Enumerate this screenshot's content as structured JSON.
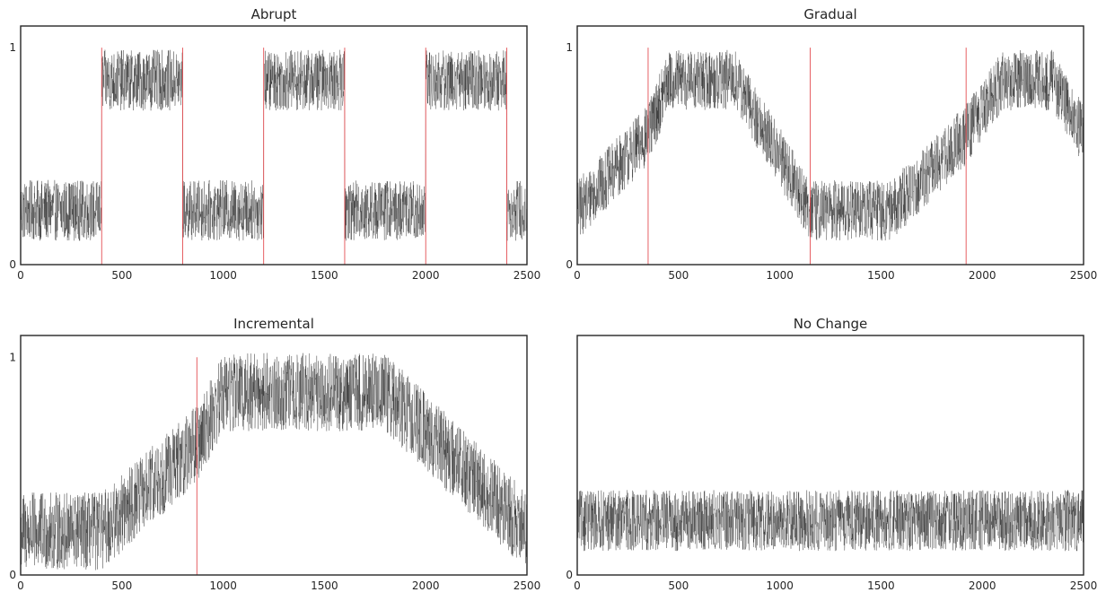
{
  "chart_data": [
    {
      "type": "line",
      "title": "Abrupt",
      "xlabel": "",
      "ylabel": "",
      "xlim": [
        0,
        2500
      ],
      "ylim": [
        0,
        1.1
      ],
      "xticks": [
        0,
        500,
        1000,
        1500,
        2000,
        2500
      ],
      "yticks": [
        0,
        1
      ],
      "drift_points": [
        400,
        800,
        1200,
        1600,
        2000,
        2400
      ],
      "trend": {
        "x": [
          0,
          399,
          400,
          799,
          800,
          1199,
          1200,
          1599,
          1600,
          1999,
          2000,
          2399,
          2400,
          2500
        ],
        "y": [
          0.25,
          0.25,
          0.85,
          0.85,
          0.25,
          0.25,
          0.85,
          0.85,
          0.25,
          0.25,
          0.85,
          0.85,
          0.25,
          0.25
        ]
      },
      "noise_amplitude": 0.14,
      "line_color": "#000000",
      "drift_color": "#e0393e"
    },
    {
      "type": "line",
      "title": "Gradual",
      "xlabel": "",
      "ylabel": "",
      "xlim": [
        0,
        2500
      ],
      "ylim": [
        0,
        1.1
      ],
      "xticks": [
        0,
        500,
        1000,
        1500,
        2000,
        2500
      ],
      "yticks": [
        0,
        1
      ],
      "drift_points": [
        350,
        1150,
        1920
      ],
      "trend": {
        "x": [
          0,
          350,
          450,
          780,
          1150,
          1350,
          1550,
          1920,
          2100,
          2350,
          2500
        ],
        "y": [
          0.25,
          0.6,
          0.85,
          0.85,
          0.25,
          0.25,
          0.25,
          0.6,
          0.85,
          0.85,
          0.6
        ]
      },
      "noise_amplitude": 0.14,
      "line_color": "#000000",
      "drift_color": "#e0393e"
    },
    {
      "type": "line",
      "title": "Incremental",
      "xlabel": "",
      "ylabel": "",
      "xlim": [
        0,
        2500
      ],
      "ylim": [
        0,
        1.1
      ],
      "xticks": [
        0,
        500,
        1000,
        1500,
        2000,
        2500
      ],
      "yticks": [
        0,
        1
      ],
      "drift_points": [
        870
      ],
      "trend": {
        "x": [
          0,
          400,
          870,
          1000,
          1800,
          2500
        ],
        "y": [
          0.2,
          0.2,
          0.6,
          0.84,
          0.84,
          0.2
        ]
      },
      "noise_amplitude": 0.18,
      "line_color": "#000000",
      "drift_color": "#e0393e"
    },
    {
      "type": "line",
      "title": "No Change",
      "xlabel": "",
      "ylabel": "",
      "xlim": [
        0,
        2500
      ],
      "ylim": [
        0,
        1.1
      ],
      "xticks": [
        0,
        500,
        1000,
        1500,
        2000,
        2500
      ],
      "yticks": [
        0
      ],
      "drift_points": [],
      "trend": {
        "x": [
          0,
          2500
        ],
        "y": [
          0.25,
          0.25
        ]
      },
      "noise_amplitude": 0.14,
      "line_color": "#000000",
      "drift_color": "#e0393e"
    }
  ]
}
